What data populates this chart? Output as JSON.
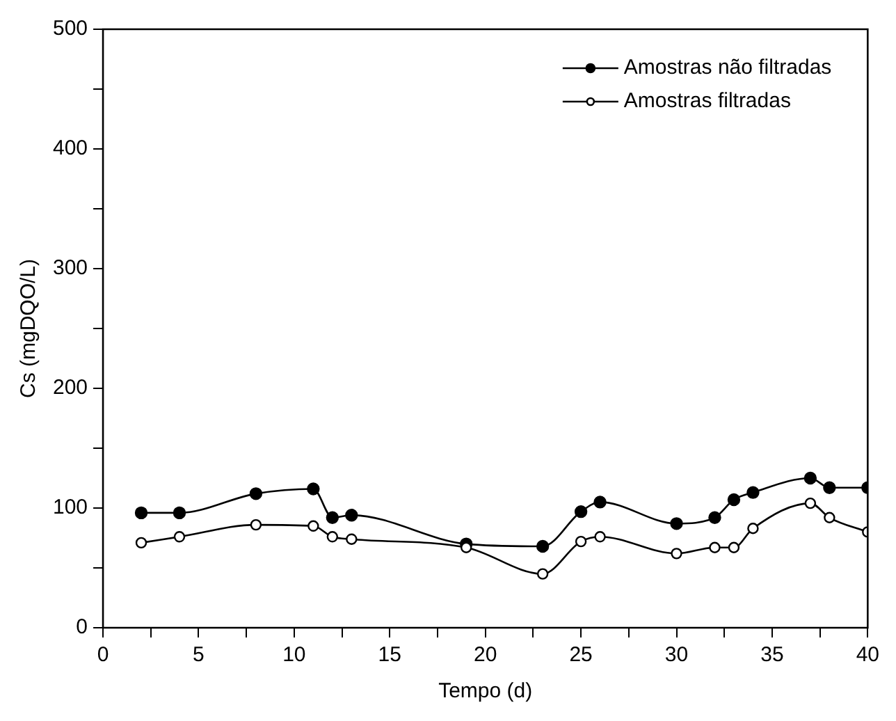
{
  "chart_data": {
    "type": "line",
    "xlabel": "Tempo (d)",
    "ylabel": "Cs (mgDQO/L)",
    "x": [
      2,
      4,
      8,
      11,
      12,
      13,
      19,
      23,
      25,
      26,
      30,
      32,
      33,
      34,
      37,
      38,
      40
    ],
    "series": [
      {
        "name": "Amostras não filtradas",
        "color": "#000000",
        "marker": "circle",
        "values": [
          96,
          96,
          112,
          116,
          92,
          94,
          70,
          68,
          97,
          105,
          87,
          92,
          107,
          113,
          125,
          117,
          117
        ]
      },
      {
        "name": "Amostras filtradas",
        "color": "#000000",
        "marker": "circle",
        "values": [
          71,
          76,
          86,
          85,
          76,
          74,
          67,
          45,
          72,
          76,
          62,
          67,
          67,
          83,
          104,
          92,
          80
        ]
      }
    ],
    "xlim": [
      0,
      40
    ],
    "xticks": [
      0,
      {
        "value": 2.5,
        "label": null
      },
      5,
      {
        "value": 7.5,
        "label": null
      },
      10,
      {
        "value": 12.5,
        "label": null
      },
      15,
      {
        "value": 17.5,
        "label": null
      },
      20,
      {
        "value": 22.5,
        "label": null
      },
      25,
      {
        "value": 27.5,
        "label": null
      },
      30,
      {
        "value": 32.5,
        "label": null
      },
      35,
      {
        "value": 37.5,
        "label": null
      },
      40
    ],
    "ylim": [
      0,
      500
    ],
    "yticks": [
      0,
      {
        "value": 50,
        "label": null
      },
      100,
      {
        "value": 150,
        "label": null
      },
      200,
      {
        "value": 250,
        "label": null
      },
      300,
      {
        "value": 350,
        "label": null
      },
      400,
      {
        "value": 450,
        "label": null
      },
      500
    ],
    "grid": false,
    "legend": "top right",
    "line_style": "solid"
  }
}
